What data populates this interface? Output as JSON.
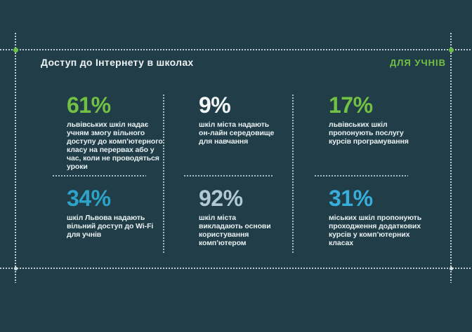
{
  "page": {
    "title": "Доступ до Інтернету в школах",
    "badge": "ДЛЯ УЧНІВ"
  },
  "colors": {
    "background": "#203d48",
    "green": "#72c144",
    "cyan": "#2da3c9",
    "cyan_bright": "#37aedb",
    "pale_blue": "#b3c9d1",
    "white": "#f4f7f7",
    "dotted_line": "#cedbe0"
  },
  "stats": [
    {
      "value": "61%",
      "color": "#72c144",
      "description": "львівських шкіл надає\nучням змогу вільного\nдоступу до комп’ютерного\nкласу на перервах або у\nчас, коли не проводяться\nуроки"
    },
    {
      "value": "9%",
      "color": "#f4f7f7",
      "description": "шкіл міста надають\nон-лайн середовище\nдля навчання"
    },
    {
      "value": "17%",
      "color": "#72c144",
      "description": "львівських шкіл\nпропонують послугу\nкурсів програмування"
    },
    {
      "value": "34%",
      "color": "#2da3c9",
      "description": "шкіл Львова надають\nвільний доступ до Wi-Fi\nдля учнів"
    },
    {
      "value": "92%",
      "color": "#b3c9d1",
      "description": "шкіл міста\nвикладають основи\nкористування\nкомп’ютером"
    },
    {
      "value": "31%",
      "color": "#37aedb",
      "description": "міських шкіл пропонують\nпроходження додаткових\nкурсів у комп’ютерних\nкласах"
    }
  ],
  "chart_data": {
    "type": "table",
    "title": "Доступ до Інтернету в школах",
    "subtitle": "ДЛЯ УЧНІВ",
    "unit": "%",
    "values": [
      61,
      9,
      17,
      34,
      92,
      31
    ],
    "categories": [
      "львівських шкіл надає учням змогу вільного доступу до комп’ютерного класу на перервах або у час, коли не проводяться уроки",
      "шкіл міста надають он-лайн середовище для навчання",
      "львівських шкіл пропонують послугу курсів програмування",
      "шкіл Львова надають вільний доступ до Wi-Fi для учнів",
      "шкіл міста викладають основи користування комп’ютером",
      "міських шкіл пропонують проходження додаткових курсів у комп’ютерних класах"
    ],
    "layout": "3 columns x 2 rows grid of percentage callouts"
  }
}
